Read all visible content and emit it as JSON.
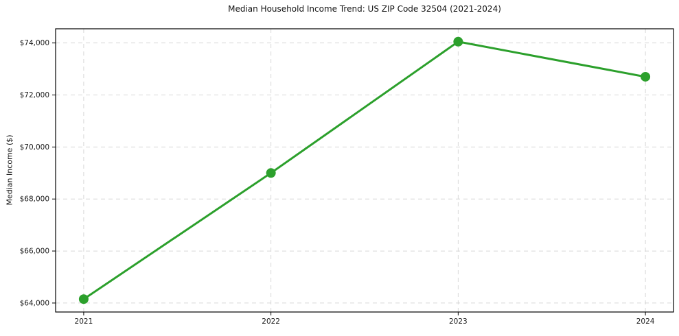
{
  "chart_data": {
    "type": "line",
    "title": "Median Household Income Trend: US ZIP Code 32504 (2021-2024)",
    "ylabel": "Median Income ($)",
    "xlabel": "",
    "x": [
      2021,
      2022,
      2023,
      2024
    ],
    "series": [
      {
        "name": "Median Household Income",
        "values": [
          64150,
          69000,
          74050,
          72700
        ]
      }
    ],
    "xticks": [
      2021,
      2022,
      2023,
      2024
    ],
    "xtick_labels": [
      "2021",
      "2022",
      "2023",
      "2024"
    ],
    "yticks": [
      64000,
      66000,
      68000,
      70000,
      72000,
      74000
    ],
    "ytick_labels": [
      "$64,000",
      "$66,000",
      "$68,000",
      "$70,000",
      "$72,000",
      "$74,000"
    ],
    "xlim": [
      2020.85,
      2024.15
    ],
    "ylim": [
      63655,
      74545
    ],
    "grid": true,
    "grid_style": "dashed",
    "legend": false,
    "colors": {
      "line": "#2ca02c",
      "marker": "#2ca02c",
      "grid": "#d6d6d6",
      "axis": "#000000",
      "text": "#1a1a1a"
    }
  }
}
